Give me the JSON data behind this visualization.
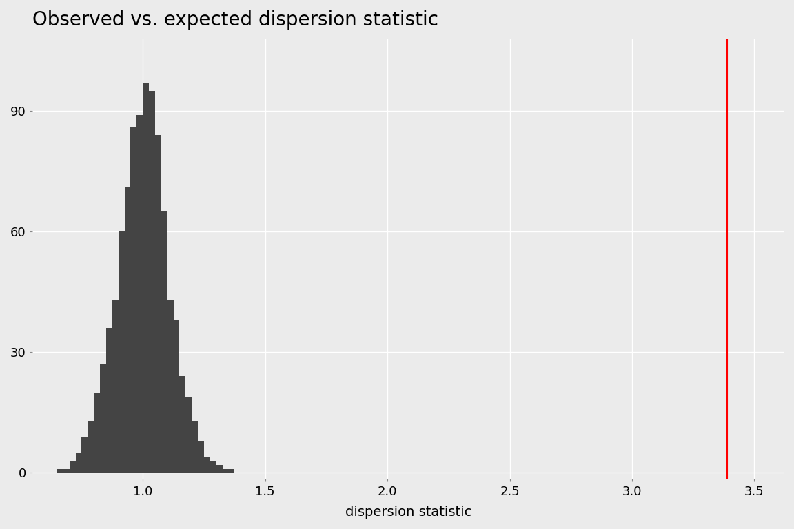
{
  "title": "Observed vs. expected dispersion statistic",
  "xlabel": "dispersion statistic",
  "observed_value": 3.39,
  "red_line_color": "red",
  "bar_color": "#444444",
  "background_color": "#EBEBEB",
  "grid_color": "#FFFFFF",
  "xlim": [
    0.55,
    3.62
  ],
  "ylim": [
    -1.5,
    108
  ],
  "yticks": [
    0,
    30,
    60,
    90
  ],
  "xticks": [
    1.0,
    1.5,
    2.0,
    2.5,
    3.0,
    3.5
  ],
  "title_fontsize": 20,
  "axis_label_fontsize": 14,
  "tick_fontsize": 13,
  "bin_edges": [
    0.65,
    0.675,
    0.7,
    0.725,
    0.75,
    0.775,
    0.8,
    0.825,
    0.85,
    0.875,
    0.9,
    0.925,
    0.95,
    0.975,
    1.0,
    1.025,
    1.05,
    1.075,
    1.1,
    1.125,
    1.15,
    1.175,
    1.2,
    1.225,
    1.25,
    1.275,
    1.3,
    1.325,
    1.35,
    1.375
  ],
  "bin_counts": [
    1,
    1,
    3,
    5,
    9,
    13,
    20,
    27,
    36,
    43,
    60,
    71,
    86,
    89,
    97,
    95,
    84,
    65,
    43,
    38,
    24,
    19,
    13,
    8,
    4,
    3,
    2,
    1,
    1,
    0
  ]
}
